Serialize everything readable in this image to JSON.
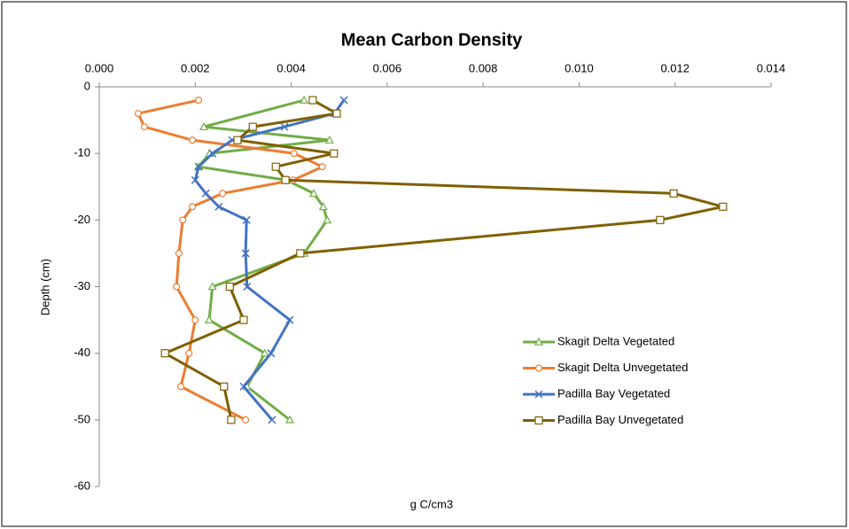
{
  "chart_data": {
    "type": "line",
    "title": "Mean Carbon Density",
    "x_label": "g C/cm3",
    "y_label": "Depth (cm)",
    "xlim": [
      0,
      0.014
    ],
    "xticks": [
      {
        "value": 0,
        "label": "0.000"
      },
      {
        "value": 0.002,
        "label": "0.002"
      },
      {
        "value": 0.004,
        "label": "0.004"
      },
      {
        "value": 0.006,
        "label": "0.006"
      },
      {
        "value": 0.008,
        "label": "0.008"
      },
      {
        "value": 0.01,
        "label": "0.010"
      },
      {
        "value": 0.012,
        "label": "0.012"
      },
      {
        "value": 0.014,
        "label": "0.014"
      }
    ],
    "ylim": [
      -60,
      0
    ],
    "yticks": [
      0,
      -10,
      -20,
      -30,
      -40,
      -50,
      -60
    ],
    "grid": false,
    "legend": "right",
    "series": [
      {
        "name": "Skagit Delta Vegetated",
        "color": "#70ad47",
        "marker": "triangle",
        "x": [
          0.00427,
          0.00218,
          0.0048,
          0.0023,
          0.00207,
          0.0039,
          0.00447,
          0.00467,
          0.00475,
          0.00427,
          0.00236,
          0.00229,
          0.00345,
          0.00308,
          0.00397
        ],
        "values": [
          -2,
          -6,
          -8,
          -10,
          -12,
          -14,
          -16,
          -18,
          -20,
          -25,
          -30,
          -35,
          -40,
          -45,
          -50
        ]
      },
      {
        "name": "Skagit Delta Unvegetated",
        "color": "#ed7d31",
        "marker": "circle",
        "x": [
          0.00207,
          0.00081,
          0.00094,
          0.00194,
          0.00406,
          0.00465,
          0.00404,
          0.00257,
          0.00194,
          0.00174,
          0.00166,
          0.00161,
          0.002,
          0.00187,
          0.0017,
          0.00305
        ],
        "values": [
          -2,
          -4,
          -6,
          -8,
          -10,
          -12,
          -14,
          -16,
          -18,
          -20,
          -25,
          -30,
          -35,
          -40,
          -45,
          -50
        ]
      },
      {
        "name": "Padilla Bay Vegetated",
        "color": "#4472c4",
        "marker": "x",
        "x": [
          0.0051,
          0.0049,
          0.00386,
          0.00277,
          0.00236,
          0.00207,
          0.002,
          0.00222,
          0.00249,
          0.00307,
          0.00305,
          0.00308,
          0.00397,
          0.00358,
          0.00301,
          0.0036
        ],
        "values": [
          -2,
          -4,
          -6,
          -8,
          -10,
          -12,
          -14,
          -16,
          -18,
          -20,
          -25,
          -30,
          -35,
          -40,
          -45,
          -50
        ]
      },
      {
        "name": "Padilla Bay Unvegetated",
        "color": "#7f6000",
        "marker": "square",
        "x": [
          0.00445,
          0.00495,
          0.0032,
          0.00288,
          0.00489,
          0.00368,
          0.00388,
          0.01197,
          0.013,
          0.01169,
          0.00419,
          0.00272,
          0.00301,
          0.00137,
          0.0026,
          0.00275
        ],
        "values": [
          -2,
          -4,
          -6,
          -8,
          -10,
          -12,
          -14,
          -16,
          -18,
          -20,
          -25,
          -30,
          -35,
          -40,
          -45,
          -50
        ]
      }
    ]
  }
}
